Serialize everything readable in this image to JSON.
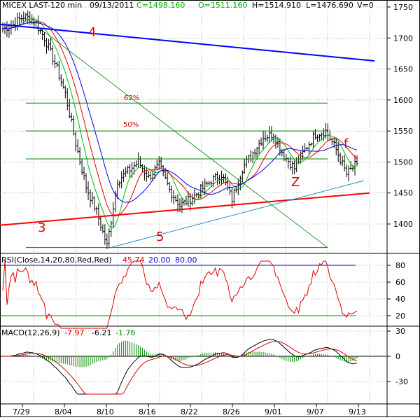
{
  "colors": {
    "background": "#ffffff",
    "grid": "#808080",
    "price_bar": "#000000",
    "ma_fast": "#00c000",
    "ma_mid": "#e00000",
    "ma_slow": "#0000e0",
    "trend_4": "#0000ff",
    "trend_3": "#ff0000",
    "trend_5": "#1e90c0",
    "trend_green": "#008000",
    "fib_line": "#008000",
    "fib_text": "#cc0000",
    "wave_label": "#dd0000",
    "rsi_line": "#dd0000",
    "rsi_level": "#0000dd",
    "rsi_level_low": "#009000",
    "macd_line": "#000000",
    "macd_signal": "#dd0000",
    "macd_hist": "#009000"
  },
  "header": {
    "symbol_text": "MICEX LAST-120 min",
    "date_text": "09/13/2011",
    "close_text": "C=1498.160",
    "open_text": "O=1511.160",
    "high_text": "H=1514.910",
    "low_text": "L=1476.690",
    "volume_text": "V=0"
  },
  "annotations": {
    "label_4": "4",
    "label_3": "3",
    "label_5": "5",
    "label_z": "Z",
    "label_f": "f",
    "fib_62": "62%",
    "fib_50": "50%"
  },
  "rsi_panel": {
    "label": "RSI(Close,14,20,80,Red,Red)",
    "value": "45.74",
    "lower": "20.00",
    "upper": "80.00"
  },
  "macd_panel": {
    "label": "MACD(12,26,9)",
    "macd_value": "-7.97",
    "signal_value": "-6.21",
    "hist_value": "-1.76"
  },
  "chart_data": [
    {
      "type": "candlestick",
      "title": "MICEX LAST-120 min",
      "x_tick_labels": [
        "7/29",
        "8/04",
        "8/10",
        "8/16",
        "8/22",
        "8/26",
        "9/01",
        "9/07",
        "9/13"
      ],
      "y_tick_labels": [
        "1750",
        "1700",
        "1650",
        "1600",
        "1550",
        "1500",
        "1450",
        "1400"
      ],
      "ylim": [
        1360,
        1760
      ],
      "close_path": [
        [
          "7/27",
          1715
        ],
        [
          "7/28",
          1722
        ],
        [
          "7/29",
          1735
        ],
        [
          "8/01",
          1728
        ],
        [
          "8/02",
          1700
        ],
        [
          "8/03",
          1660
        ],
        [
          "8/04",
          1610
        ],
        [
          "8/05",
          1530
        ],
        [
          "8/08",
          1460
        ],
        [
          "8/09",
          1420
        ],
        [
          "8/10",
          1365
        ],
        [
          "8/11",
          1470
        ],
        [
          "8/12",
          1485
        ],
        [
          "8/15",
          1500
        ],
        [
          "8/16",
          1475
        ],
        [
          "8/17",
          1495
        ],
        [
          "8/18",
          1455
        ],
        [
          "8/19",
          1430
        ],
        [
          "8/22",
          1440
        ],
        [
          "8/23",
          1455
        ],
        [
          "8/24",
          1470
        ],
        [
          "8/25",
          1480
        ],
        [
          "8/26",
          1440
        ],
        [
          "8/29",
          1490
        ],
        [
          "8/30",
          1515
        ],
        [
          "8/31",
          1540
        ],
        [
          "9/01",
          1545
        ],
        [
          "9/02",
          1510
        ],
        [
          "9/05",
          1490
        ],
        [
          "9/06",
          1520
        ],
        [
          "9/07",
          1545
        ],
        [
          "9/08",
          1550
        ],
        [
          "9/09",
          1520
        ],
        [
          "9/12",
          1480
        ],
        [
          "9/13",
          1498
        ]
      ],
      "trend_lines": [
        {
          "label": "4",
          "from": [
            "7/27",
            1722
          ],
          "to": [
            "9/13",
            1663
          ]
        },
        {
          "label": "3",
          "from": [
            "7/27",
            1398
          ],
          "to": [
            "9/13",
            1450
          ]
        },
        {
          "label": "5",
          "from": [
            "8/10",
            1362
          ],
          "to": [
            "9/13",
            1470
          ]
        },
        {
          "label": "",
          "from": [
            "7/29",
            1730
          ],
          "to": [
            "9/08",
            1362
          ]
        }
      ],
      "horizontal_levels": [
        {
          "label": "62%",
          "value": 1595
        },
        {
          "label": "50%",
          "value": 1550
        },
        {
          "label": "",
          "value": 1505
        },
        {
          "label": "",
          "value": 1362
        }
      ]
    },
    {
      "type": "line",
      "title": "RSI(Close,14,20,80,Red,Red)",
      "y_tick_labels": [
        "80",
        "60",
        "40",
        "20"
      ],
      "ylim": [
        5,
        85
      ],
      "levels": [
        80,
        20
      ],
      "last_value": 45.74
    },
    {
      "type": "line",
      "title": "MACD(12,26,9)",
      "y_tick_labels": [
        "30",
        "0",
        "-30"
      ],
      "ylim": [
        -45,
        38
      ],
      "values": {
        "macd": -7.97,
        "signal": -6.21,
        "hist": -1.76
      }
    }
  ]
}
